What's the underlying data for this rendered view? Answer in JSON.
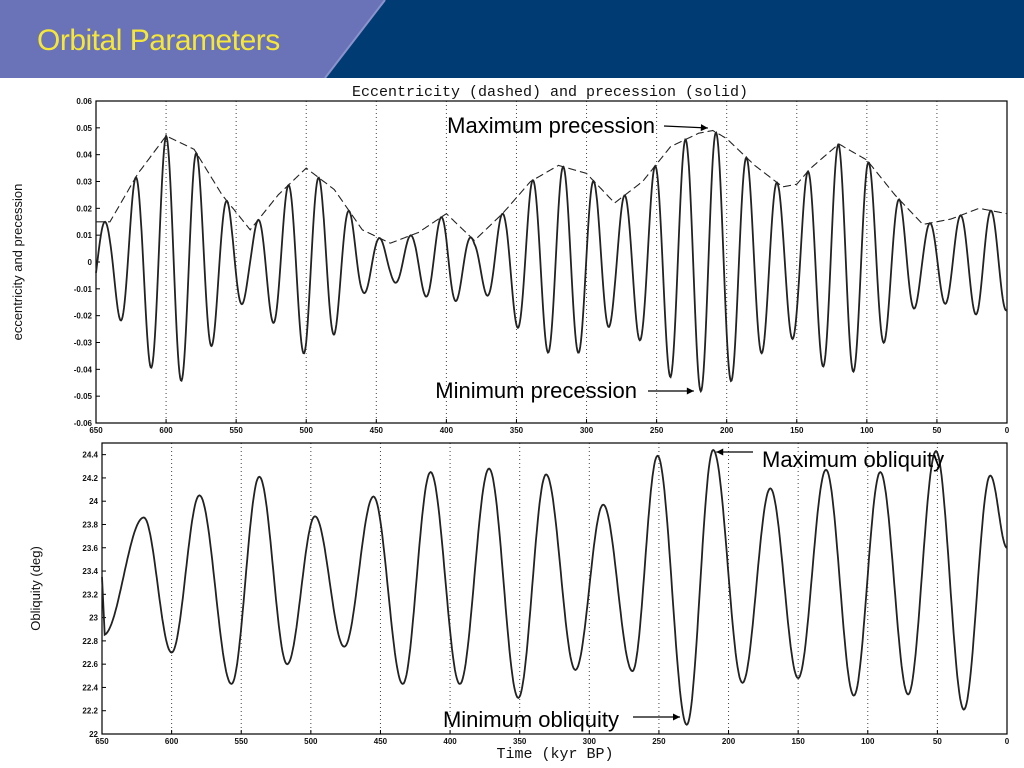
{
  "header": {
    "title": "Orbital Parameters",
    "colors": {
      "dark_blue": "#003c73",
      "light_blue": "#6a72b8",
      "title_yellow": "#f5e63a"
    }
  },
  "chart_data": [
    {
      "type": "line",
      "title": "Eccentricity (dashed) and precession (solid)",
      "xlabel": "",
      "ylabel": "eccentricity and precession",
      "xlim": [
        650,
        0
      ],
      "ylim": [
        -0.06,
        0.06
      ],
      "x_ticks": [
        "650",
        "600",
        "550",
        "500",
        "450",
        "400",
        "350",
        "300",
        "250",
        "200",
        "150",
        "100",
        "50",
        "0"
      ],
      "y_ticks": [
        "0.06",
        "0.05",
        "0.04",
        "0.03",
        "0.02",
        "0.01",
        "0",
        "-0.01",
        "-0.02",
        "-0.03",
        "-0.04",
        "-0.05",
        "-0.06"
      ],
      "grid": "vertical dotted",
      "series": [
        {
          "name": "eccentricity",
          "style": "dashed",
          "x": [
            650,
            640,
            620,
            600,
            580,
            560,
            540,
            520,
            500,
            480,
            460,
            440,
            420,
            400,
            380,
            360,
            340,
            320,
            300,
            280,
            260,
            240,
            220,
            210,
            200,
            180,
            160,
            150,
            140,
            120,
            100,
            80,
            60,
            40,
            20,
            0
          ],
          "values": [
            0.015,
            0.015,
            0.033,
            0.047,
            0.042,
            0.025,
            0.012,
            0.025,
            0.035,
            0.027,
            0.012,
            0.007,
            0.011,
            0.018,
            0.008,
            0.018,
            0.03,
            0.036,
            0.033,
            0.022,
            0.03,
            0.043,
            0.048,
            0.049,
            0.046,
            0.036,
            0.028,
            0.029,
            0.035,
            0.044,
            0.038,
            0.025,
            0.014,
            0.016,
            0.02,
            0.018
          ]
        },
        {
          "name": "precession",
          "style": "solid",
          "period_kyr": 21.8,
          "phase_kyr": 600
        }
      ],
      "annotations": [
        {
          "text": "Maximum precession",
          "x": 212,
          "y": 0.049
        },
        {
          "text": "Minimum precession",
          "x": 222,
          "y": -0.049
        }
      ]
    },
    {
      "type": "line",
      "title": "",
      "xlabel": "Time (kyr BP)",
      "ylabel": "Obliquity (deg)",
      "xlim": [
        650,
        0
      ],
      "ylim": [
        22,
        24.5
      ],
      "x_ticks": [
        "650",
        "600",
        "550",
        "500",
        "450",
        "400",
        "350",
        "300",
        "250",
        "200",
        "150",
        "100",
        "50",
        "0"
      ],
      "y_ticks": [
        "24.4",
        "24.2",
        "24",
        "23.8",
        "23.6",
        "23.4",
        "23.2",
        "23",
        "22.8",
        "22.6",
        "22.4",
        "22.2",
        "22"
      ],
      "grid": "vertical dotted",
      "series": [
        {
          "name": "obliquity",
          "style": "solid",
          "peaks_x": [
            620,
            580,
            537,
            497,
            455,
            414,
            372,
            331,
            290,
            251,
            211,
            170,
            130,
            91,
            51,
            12
          ],
          "peaks_y": [
            23.86,
            24.05,
            24.21,
            23.87,
            24.04,
            24.25,
            24.28,
            24.23,
            23.97,
            24.39,
            24.44,
            24.11,
            24.27,
            24.25,
            24.43,
            24.22
          ],
          "troughs_x": [
            649,
            600,
            557,
            517,
            476,
            434,
            393,
            351,
            310,
            269,
            230,
            190,
            150,
            110,
            71,
            31
          ],
          "troughs_y": [
            22.85,
            22.7,
            22.43,
            22.6,
            22.75,
            22.43,
            22.43,
            22.31,
            22.55,
            22.54,
            22.08,
            22.44,
            22.48,
            22.33,
            22.34,
            22.21
          ],
          "end": [
            0,
            23.6
          ]
        }
      ],
      "annotations": [
        {
          "text": "Maximum obliquity",
          "x": 211,
          "y": 24.44
        },
        {
          "text": "Minimum obliquity",
          "x": 232,
          "y": 22.08
        }
      ]
    }
  ]
}
